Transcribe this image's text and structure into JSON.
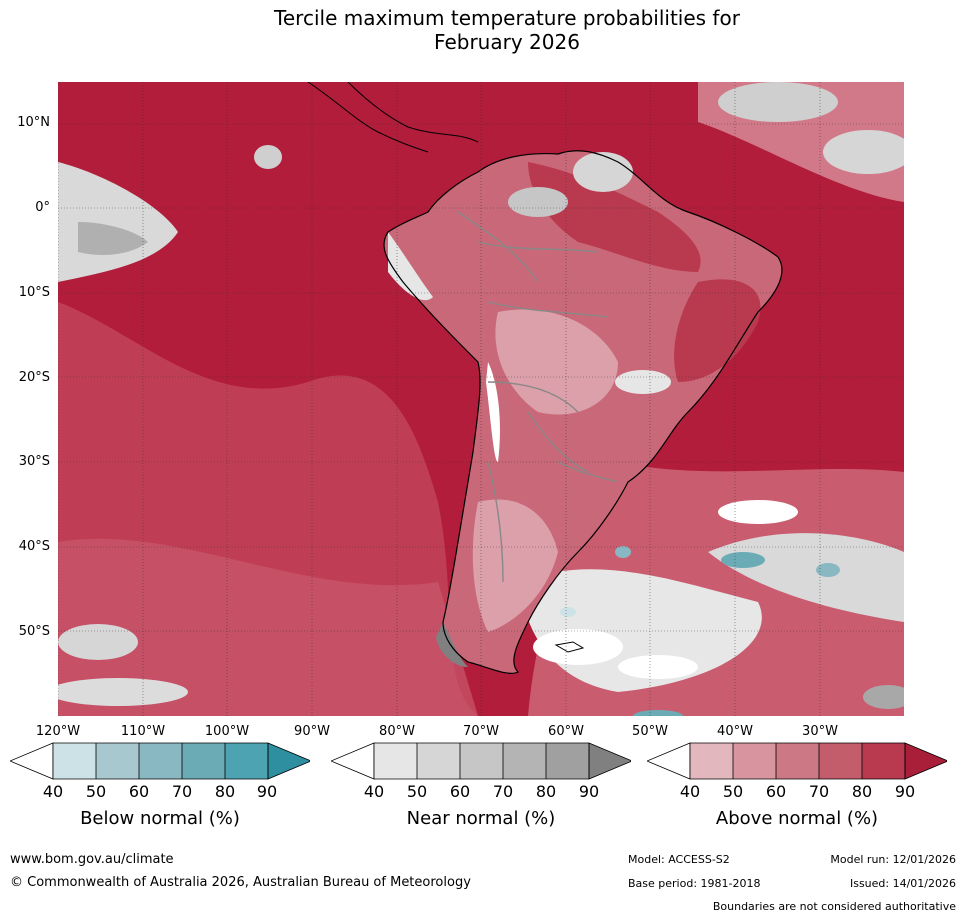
{
  "title_line1": "Tercile maximum temperature probabilities for",
  "title_line2": "February 2026",
  "lat_labels": [
    "10°N",
    "0°",
    "10°S",
    "20°S",
    "30°S",
    "40°S",
    "50°S"
  ],
  "lon_labels": [
    "120°W",
    "110°W",
    "100°W",
    "90°W",
    "80°W",
    "70°W",
    "60°W",
    "50°W",
    "40°W",
    "30°W"
  ],
  "colorbars": [
    {
      "label": "Below normal (%)",
      "ticks": [
        "40",
        "50",
        "60",
        "70",
        "80",
        "90"
      ],
      "colors": [
        "#ffffff",
        "#cde2e7",
        "#a8c8cf",
        "#89b7c2",
        "#6aabb6",
        "#4da3b1",
        "#2d8f9f"
      ]
    },
    {
      "label": "Near normal (%)",
      "ticks": [
        "40",
        "50",
        "60",
        "70",
        "80",
        "90"
      ],
      "colors": [
        "#ffffff",
        "#e6e6e6",
        "#d6d6d6",
        "#c6c6c6",
        "#b4b4b4",
        "#a0a0a0",
        "#808080"
      ]
    },
    {
      "label": "Above normal (%)",
      "ticks": [
        "40",
        "50",
        "60",
        "70",
        "80",
        "90"
      ],
      "colors": [
        "#ffffff",
        "#e2b7bd",
        "#d8959f",
        "#cc7885",
        "#c35d6c",
        "#b93a4f",
        "#a91e38"
      ]
    }
  ],
  "footer": {
    "website": "www.bom.gov.au/climate",
    "copyright": "© Commonwealth of Australia 2026, Australian Bureau of Meteorology",
    "model": "Model: ACCESS-S2",
    "model_run": "Model run: 12/01/2026",
    "base_period": "Base period: 1981-2018",
    "issued": "Issued: 14/01/2026",
    "disclaimer": "Boundaries are not considered authoritative"
  },
  "colors": {
    "ocean_above": "#b21d3b",
    "land_above_mid": "#c96878",
    "above_light": "#dca0aa",
    "near_light": "#d9d9d9",
    "near_mid": "#b0b0b0"
  }
}
